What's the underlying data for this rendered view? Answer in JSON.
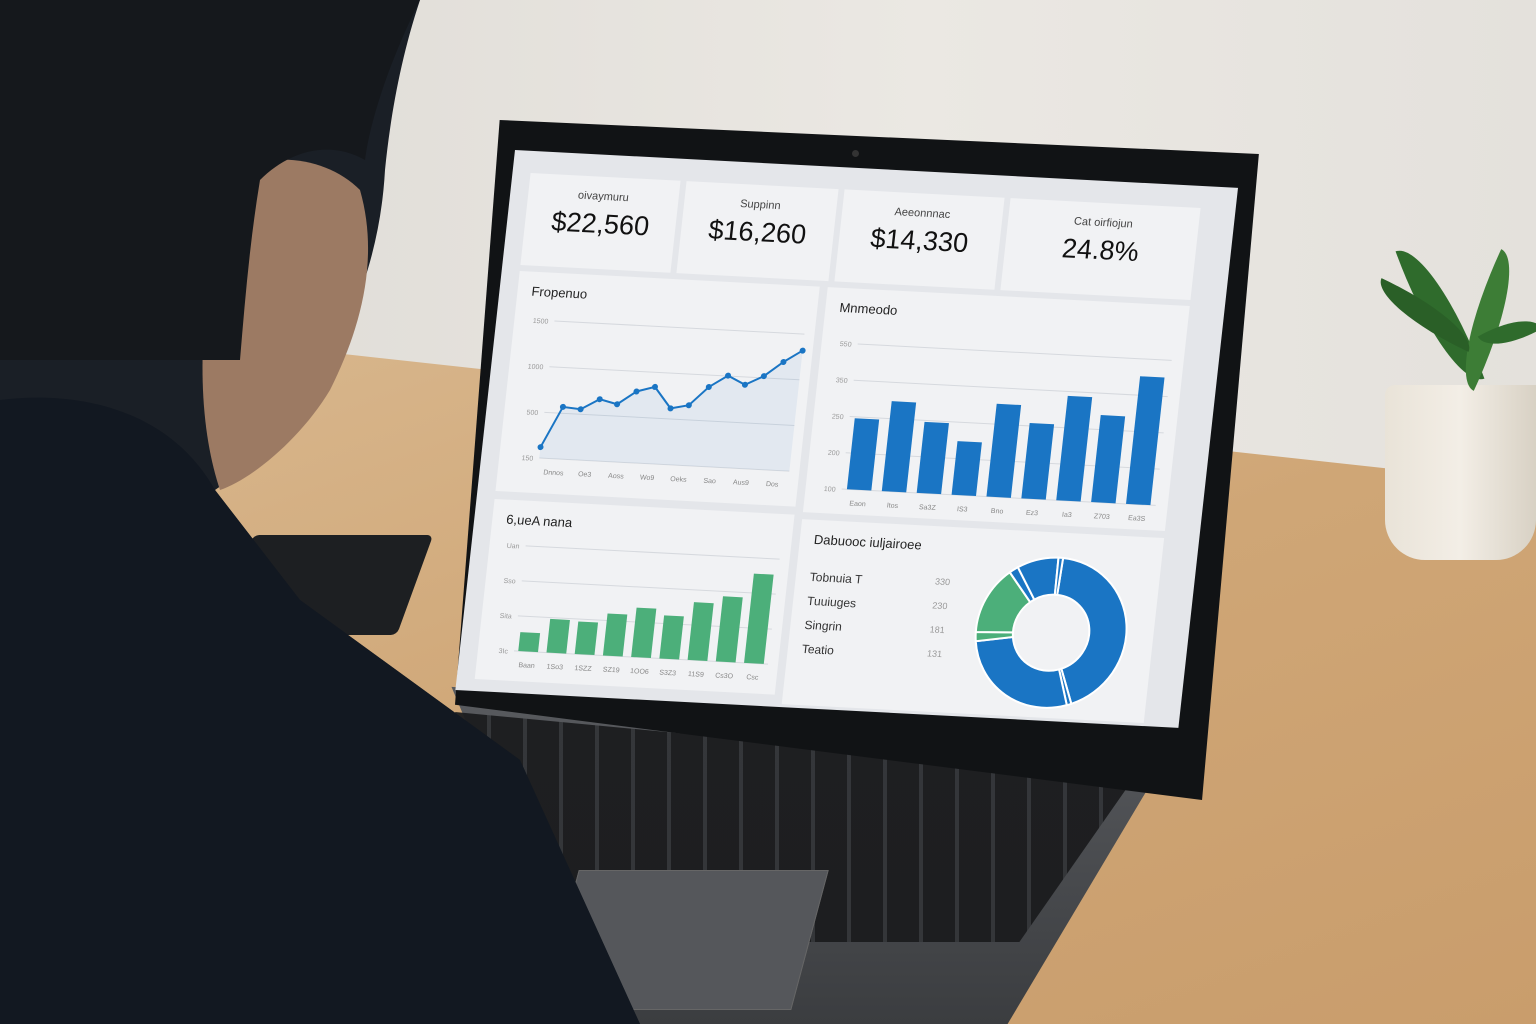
{
  "kpis": [
    {
      "label": "oivaymuru",
      "value": "$22,560"
    },
    {
      "label": "Suppinn",
      "value": "$16,260"
    },
    {
      "label": "Aeeonnnac",
      "value": "$14,330"
    },
    {
      "label": "Cat oirfiojun",
      "value": "24.8%"
    }
  ],
  "colors": {
    "blue": "#1a75c4",
    "green": "#4caf7a",
    "panel": "#f1f2f4"
  },
  "chart_data": [
    {
      "type": "line",
      "title": "Fropenuo",
      "y_ticks": [
        "1500",
        "1000",
        "500",
        "150"
      ],
      "x_ticks": [
        "Dnnos",
        "Oe3",
        "Aoss",
        "Wo9",
        "Oeks",
        "Sao",
        "Aus9",
        "Dos"
      ],
      "values": [
        8,
        38,
        37,
        45,
        42,
        52,
        56,
        41,
        44,
        58,
        67,
        61,
        68,
        79,
        88
      ],
      "grid": true
    },
    {
      "type": "bar",
      "title": "Mnmeodo",
      "y_ticks": [
        "550",
        "350",
        "250",
        "200",
        "100"
      ],
      "x_ticks": [
        "Eaon",
        "Itos",
        "Sa3Z",
        "IS3",
        "Bno",
        "Ez3",
        "Ia3",
        "Z703",
        "Ea3S"
      ],
      "values": [
        49,
        62,
        49,
        37,
        64,
        52,
        72,
        60,
        88
      ],
      "color": "blue",
      "grid": true
    },
    {
      "type": "bar",
      "title": "6,ueA nana",
      "y_ticks": [
        "Uan",
        "Sso",
        "Sita",
        "3Ic"
      ],
      "x_ticks": [
        "Baan",
        "1So3",
        "1SZZ",
        "SZ19",
        "1OO6",
        "S3Z3",
        "11S9",
        "Cs3O",
        "Csc"
      ],
      "values": [
        18,
        32,
        31,
        40,
        47,
        41,
        55,
        62,
        85
      ],
      "color": "green",
      "grid": true
    },
    {
      "type": "pie",
      "title": "Dabuooc iuljairoee",
      "donut": true,
      "legend": [
        {
          "label": "Tobnuia T",
          "value": "330"
        },
        {
          "label": "Tuuiuges",
          "value": "230"
        },
        {
          "label": "Singrin",
          "value": "181"
        },
        {
          "label": "Teatio",
          "value": "131"
        }
      ],
      "slices": [
        {
          "value": 44,
          "color": "#1a75c4"
        },
        {
          "value": 1,
          "color": "#1a75c4"
        },
        {
          "value": 28,
          "color": "#1a75c4"
        },
        {
          "value": 2,
          "color": "#4caf7a"
        },
        {
          "value": 15,
          "color": "#4caf7a"
        },
        {
          "value": 2,
          "color": "#1a75c4"
        },
        {
          "value": 9,
          "color": "#1a75c4"
        },
        {
          "value": 1,
          "color": "#1a75c4"
        }
      ]
    }
  ]
}
